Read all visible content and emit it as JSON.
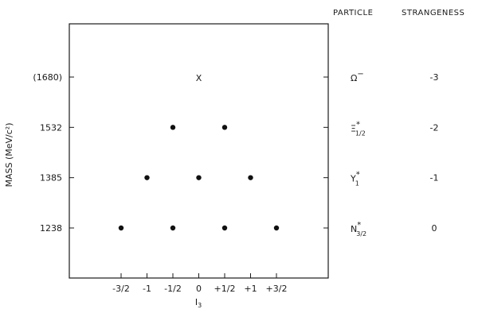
{
  "chart_data": {
    "type": "scatter",
    "title": "",
    "xlabel": "I",
    "xlabel_sub": "3",
    "ylabel": "MASS (MeV/c²)",
    "xlim": [
      -2.5,
      2.5
    ],
    "mass_levels": [
      "1238",
      "1385",
      "1532",
      "(1680)"
    ],
    "x_ticks": [
      {
        "value": -1.5,
        "label": "-3/2"
      },
      {
        "value": -1.0,
        "label": "-1"
      },
      {
        "value": -0.5,
        "label": "-1/2"
      },
      {
        "value": 0.0,
        "label": "0"
      },
      {
        "value": 0.5,
        "label": "+1/2"
      },
      {
        "value": 1.0,
        "label": "+1"
      },
      {
        "value": 1.5,
        "label": "+3/2"
      }
    ],
    "points": [
      {
        "i3": -1.5,
        "mass": "1238",
        "marker": "dot"
      },
      {
        "i3": -0.5,
        "mass": "1238",
        "marker": "dot"
      },
      {
        "i3": 0.5,
        "mass": "1238",
        "marker": "dot"
      },
      {
        "i3": 1.5,
        "mass": "1238",
        "marker": "dot"
      },
      {
        "i3": -1.0,
        "mass": "1385",
        "marker": "dot"
      },
      {
        "i3": 0.0,
        "mass": "1385",
        "marker": "dot"
      },
      {
        "i3": 1.0,
        "mass": "1385",
        "marker": "dot"
      },
      {
        "i3": -0.5,
        "mass": "1532",
        "marker": "dot"
      },
      {
        "i3": 0.5,
        "mass": "1532",
        "marker": "dot"
      },
      {
        "i3": 0.0,
        "mass": "(1680)",
        "marker": "x",
        "text": "X"
      }
    ],
    "table_headers": {
      "particle": "PARTICLE",
      "strangeness": "STRANGENESS"
    },
    "rows": [
      {
        "mass": "(1680)",
        "particle": "Ω",
        "sup": "−",
        "sub": "",
        "strangeness": "-3"
      },
      {
        "mass": "1532",
        "particle": "Ξ",
        "sup": "*",
        "sub": "1/2",
        "strangeness": "-2"
      },
      {
        "mass": "1385",
        "particle": "Y",
        "sup": "*",
        "sub": "1",
        "strangeness": "-1"
      },
      {
        "mass": "1238",
        "particle": "N",
        "sup": "*",
        "sub": "3/2",
        "strangeness": "0"
      }
    ]
  }
}
